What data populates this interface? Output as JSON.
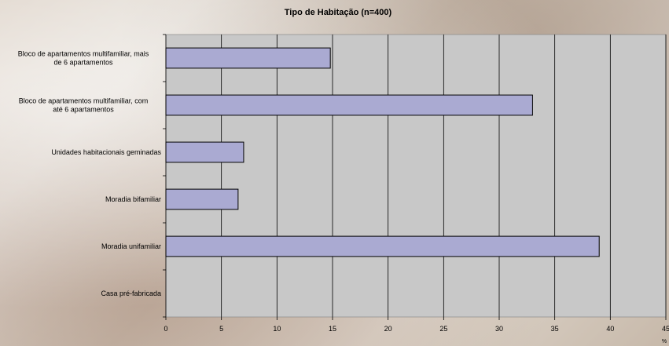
{
  "chart_data": {
    "type": "bar",
    "orientation": "horizontal",
    "title": "Tipo de Habitação (n=400)",
    "xlabel": "%",
    "ylabel": "",
    "categories": [
      [
        "Bloco de apartamentos multifamiliar, mais",
        "de 6 apartamentos"
      ],
      [
        "Bloco de apartamentos multifamiliar, com",
        "até 6 apartamentos"
      ],
      [
        "Unidades habitacionais geminadas"
      ],
      [
        "Moradia bifamiliar"
      ],
      [
        "Moradia unifamiliar"
      ],
      [
        "Casa pré-fabricada"
      ]
    ],
    "values": [
      14.8,
      33.0,
      7.0,
      6.5,
      39.0,
      0
    ],
    "xlim": [
      0,
      45
    ],
    "xticks": [
      "0",
      "5",
      "10",
      "15",
      "20",
      "25",
      "30",
      "35",
      "40",
      "45"
    ],
    "grid": true,
    "legend": "none",
    "colors": {
      "bar_fill": "#aaaad2",
      "bar_stroke": "#000000",
      "plot_background": "#c8c8c8",
      "grid": "#000000"
    }
  }
}
